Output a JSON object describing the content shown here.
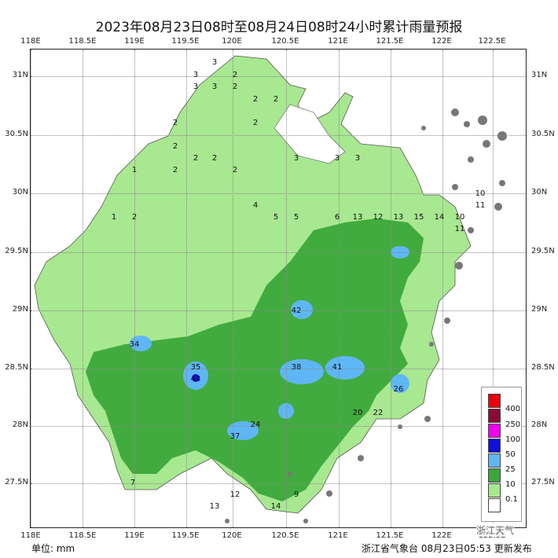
{
  "title": "2023年08月23日08时至08月24日08时24小时累计雨量预报",
  "axes": {
    "lon_ticks": [
      "118E",
      "118.5E",
      "119E",
      "119.5E",
      "120E",
      "120.5E",
      "121E",
      "121.5E",
      "122E",
      "122.5E"
    ],
    "lat_ticks": [
      "31N",
      "30.5N",
      "30N",
      "29.5N",
      "29N",
      "28.5N",
      "28N",
      "27.5N"
    ]
  },
  "legend": {
    "items": [
      {
        "label": "400",
        "color": "#e8000b"
      },
      {
        "label": "250",
        "color": "#8b0a3a"
      },
      {
        "label": "100",
        "color": "#f000f0"
      },
      {
        "label": "50",
        "color": "#1010d8"
      },
      {
        "label": "25",
        "color": "#5fb6f5"
      },
      {
        "label": "10",
        "color": "#3ba83b"
      },
      {
        "label": "0.1",
        "color": "#a8e890"
      },
      {
        "label": "",
        "color": "#ffffff"
      }
    ]
  },
  "footer": {
    "unit": "单位: mm",
    "issuer": "浙江省气象台 08月23日05:53 更新发布",
    "watermark": "浙江天气"
  },
  "map": {
    "values": [
      {
        "v": "3"
      },
      {
        "v": "3"
      },
      {
        "v": "2"
      },
      {
        "v": "3"
      },
      {
        "v": "3"
      },
      {
        "v": "2"
      },
      {
        "v": "2"
      },
      {
        "v": "2"
      },
      {
        "v": "2"
      },
      {
        "v": "2"
      },
      {
        "v": "2"
      },
      {
        "v": "2"
      },
      {
        "v": "2"
      },
      {
        "v": "2"
      },
      {
        "v": "2"
      },
      {
        "v": "1"
      },
      {
        "v": "1"
      },
      {
        "v": "2"
      },
      {
        "v": "3"
      },
      {
        "v": "3"
      },
      {
        "v": "3"
      },
      {
        "v": "4"
      },
      {
        "v": "5"
      },
      {
        "v": "5"
      },
      {
        "v": "6"
      },
      {
        "v": "13"
      },
      {
        "v": "12"
      },
      {
        "v": "13"
      },
      {
        "v": "15"
      },
      {
        "v": "14"
      },
      {
        "v": "10"
      },
      {
        "v": "11"
      },
      {
        "v": "42"
      },
      {
        "v": "34"
      },
      {
        "v": "43"
      },
      {
        "v": "35"
      },
      {
        "v": "38"
      },
      {
        "v": "41"
      },
      {
        "v": "37"
      },
      {
        "v": "24"
      },
      {
        "v": "20"
      },
      {
        "v": "22"
      },
      {
        "v": "26"
      },
      {
        "v": "13"
      },
      {
        "v": "14"
      },
      {
        "v": "12"
      },
      {
        "v": "9"
      },
      {
        "v": "7"
      },
      {
        "v": "10"
      },
      {
        "v": "11"
      }
    ]
  }
}
